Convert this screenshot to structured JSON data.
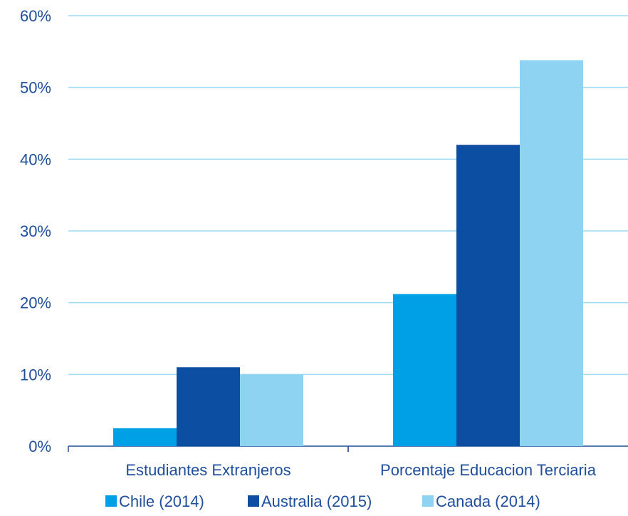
{
  "chart_data": {
    "type": "bar",
    "categories": [
      "Estudiantes Extranjeros",
      "Porcentaje Educacion Terciaria"
    ],
    "series": [
      {
        "name": "Chile (2014)",
        "values": [
          2.5,
          21.2
        ],
        "color": "#00a0e6"
      },
      {
        "name": "Australia (2015)",
        "values": [
          11.0,
          42.0
        ],
        "color": "#0b4ea2"
      },
      {
        "name": "Canada (2014)",
        "values": [
          10.0,
          53.8
        ],
        "color": "#8fd3f3"
      }
    ],
    "y_ticks": [
      "0%",
      "10%",
      "20%",
      "30%",
      "40%",
      "50%",
      "60%"
    ],
    "ylim": [
      0,
      60
    ],
    "grid": true,
    "legend_position": "bottom",
    "colors": {
      "text": "#1f4e9c",
      "grid": "#9edaf2",
      "axis": "#1f4e9c"
    }
  }
}
